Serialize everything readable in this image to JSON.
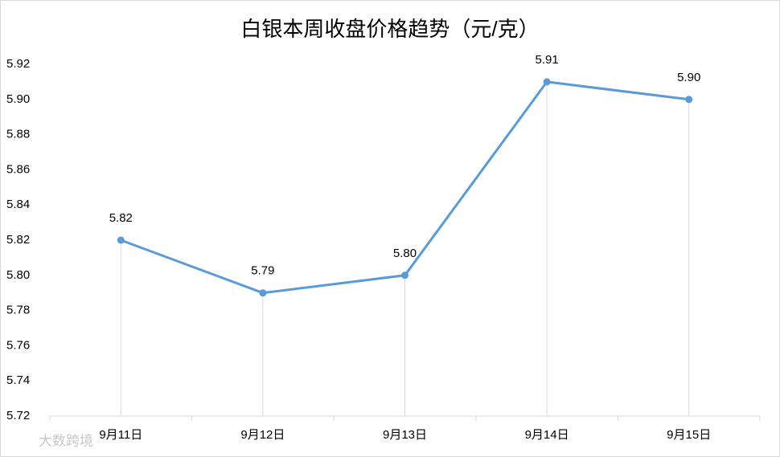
{
  "chart_data": {
    "type": "line",
    "title": "白银本周收盘价格趋势（元/克）",
    "categories": [
      "9月11日",
      "9月12日",
      "9月13日",
      "9月14日",
      "9月15日"
    ],
    "series": [
      {
        "name": "收盘价格",
        "color": "#5b9bd5",
        "values": [
          5.82,
          5.79,
          5.8,
          5.91,
          5.9
        ],
        "value_labels": [
          "5.82",
          "5.79",
          "5.80",
          "5.91",
          "5.90"
        ]
      }
    ],
    "ylim": [
      5.72,
      5.92
    ],
    "yticks": [
      5.72,
      5.74,
      5.76,
      5.78,
      {
        "value": 5.8,
        "label": "5.80"
      },
      5.82,
      5.84,
      5.86,
      5.88,
      {
        "value": 5.9,
        "label": "5.90"
      },
      5.92
    ],
    "drop_lines": true,
    "grid": false
  },
  "watermark": "大数跨境"
}
